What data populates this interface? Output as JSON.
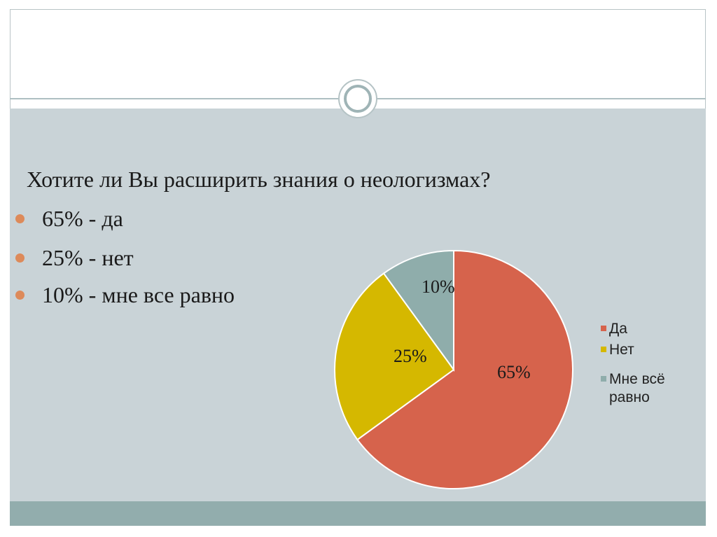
{
  "slide": {
    "question": "Хотите ли Вы расширить знания о неологизмах?",
    "bullets": [
      "65% - да",
      "25% - нет",
      "10% - мне все равно"
    ],
    "colors": {
      "background": "#c9d3d7",
      "footer": "#92adad",
      "bullet": "#dd8a5a"
    }
  },
  "chart_data": {
    "type": "pie",
    "title": "",
    "slices": [
      {
        "label": "Да",
        "value": 65,
        "data_label": "65%",
        "color": "#d6634c"
      },
      {
        "label": "Нет",
        "value": 25,
        "data_label": "25%",
        "color": "#d5b800"
      },
      {
        "label": "Мне всё равно",
        "value": 10,
        "data_label": "10%",
        "color": "#8fadab"
      }
    ],
    "legend": {
      "placement": "right",
      "entries": [
        {
          "lines": [
            "Да"
          ],
          "color": "#d6634c"
        },
        {
          "lines": [
            "Нет"
          ],
          "color": "#d5b800"
        },
        {
          "lines": [
            "Мне всё",
            "равно"
          ],
          "color": "#8fadab"
        }
      ]
    }
  }
}
